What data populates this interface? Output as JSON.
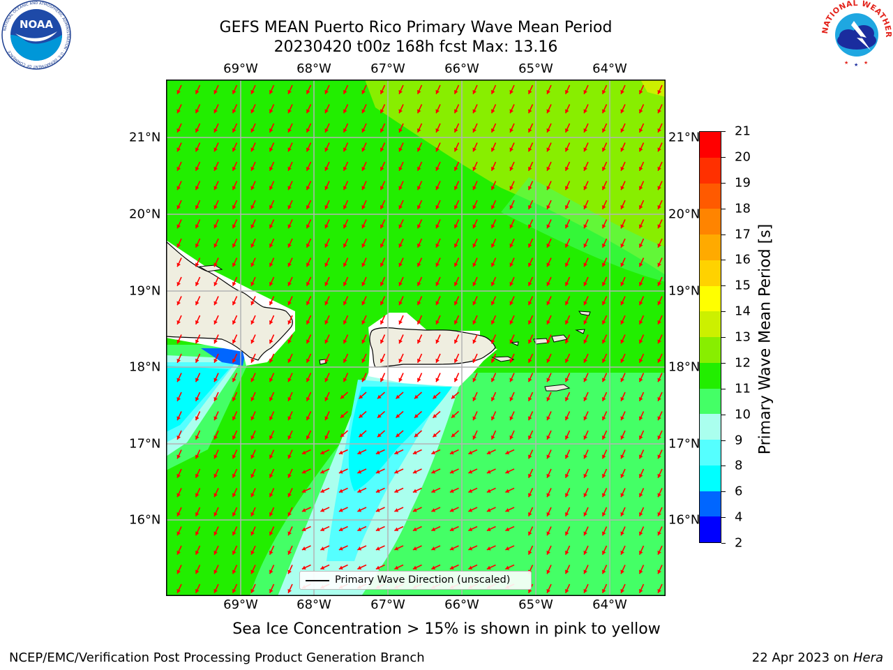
{
  "header": {
    "title_line1": "GEFS MEAN Puerto Rico Primary Wave Mean Period",
    "title_line2": "20230420 t00z 168h fcst   Max: 13.16"
  },
  "axes": {
    "lon_labels": [
      "69°W",
      "68°W",
      "67°W",
      "66°W",
      "65°W",
      "64°W"
    ],
    "lat_labels": [
      "21°N",
      "20°N",
      "19°N",
      "18°N",
      "17°N",
      "16°N"
    ]
  },
  "map": {
    "region": "Puerto Rico",
    "lon_range": [
      -69.9,
      -63.25
    ],
    "lat_range": [
      15.05,
      21.75
    ],
    "gridlines": true,
    "vector_color": "#ff0000",
    "land_color": "#efeee0",
    "legend_label": "Primary Wave Direction (unscaled)"
  },
  "colorbar": {
    "title": "Primary Wave Mean Period [s]",
    "levels": [
      "2",
      "4",
      "6",
      "8",
      "9",
      "10",
      "11",
      "12",
      "13",
      "14",
      "15",
      "16",
      "17",
      "18",
      "19",
      "20",
      "21"
    ],
    "colors": [
      "#0000ff",
      "#0066ff",
      "#00ffff",
      "#55ffff",
      "#aaffee",
      "#44ff66",
      "#22ee00",
      "#88ee00",
      "#ccf000",
      "#ffff00",
      "#ffd200",
      "#ffaa00",
      "#ff8400",
      "#ff5a00",
      "#ff3000",
      "#ff0000"
    ]
  },
  "caption": "Sea Ice Concentration > 15% is shown in pink to yellow",
  "footer": {
    "left": "NCEP/EMC/Verification Post Processing Product Generation Branch",
    "date": "22 Apr 2023 on ",
    "host": "Hera"
  },
  "logos": {
    "noaa_text": "NOAA",
    "noaa_ring_text": "NATIONAL OCEANIC AND ATMOSPHERIC ADMINISTRATION · U.S. DEPARTMENT OF COMMERCE",
    "nws_ring_text": "NATIONAL WEATHER SERVICE"
  }
}
